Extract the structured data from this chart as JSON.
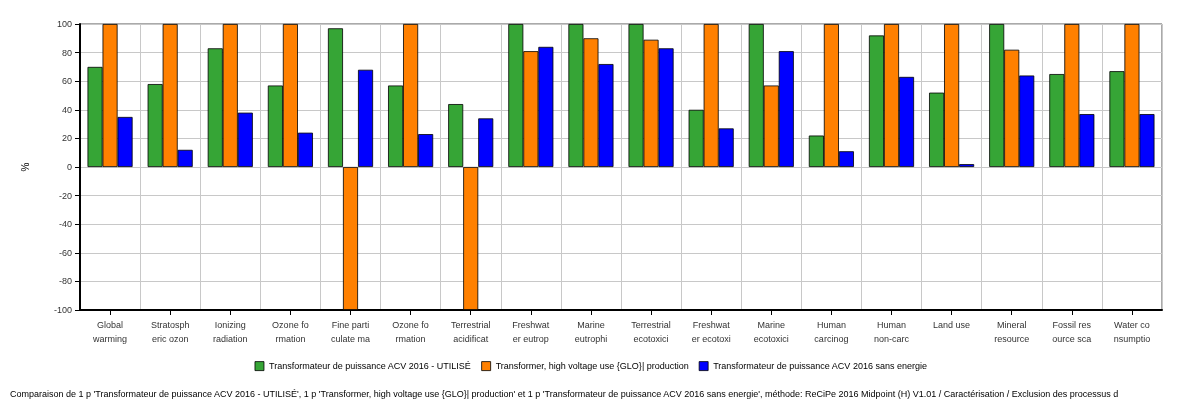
{
  "chart_data": {
    "type": "bar",
    "ylabel": "%",
    "categories": [
      "Global\nwarming",
      "Stratosph\neric ozon",
      "Ionizing\nradiation",
      "Ozone fo\nrmation",
      "Fine parti\nculate ma",
      "Ozone fo\nrmation",
      "Terrestrial\nacidificat",
      "Freshwat\ner eutrop",
      "Marine\neutrophi",
      "Terrestrial\necotoxici",
      "Freshwat\ner ecotoxi",
      "Marine\necotoxici",
      "Human\ncarcinog",
      "Human\nnon-carc",
      "Land use",
      "Mineral\nresource",
      "Fossil res\nource sca",
      "Water co\nnsumptio"
    ],
    "series": [
      {
        "name": "Transformateur de puissance ACV 2016 - UTILISÉ",
        "color": "#36a536",
        "values": [
          70,
          58,
          83,
          57,
          97,
          57,
          44,
          100,
          100,
          100,
          40,
          100,
          22,
          92,
          52,
          100,
          65,
          67
        ]
      },
      {
        "name": "Transformer, high voltage use {GLO}| production",
        "color": "#ff8000",
        "values": [
          100,
          100,
          100,
          100,
          -100,
          100,
          -100,
          81,
          90,
          89,
          100,
          57,
          100,
          100,
          100,
          82,
          100,
          100
        ]
      },
      {
        "name": "Transformateur de puissance ACV 2016 sans energie",
        "color": "#0000ff",
        "values": [
          35,
          12,
          38,
          24,
          68,
          23,
          34,
          84,
          72,
          83,
          27,
          81,
          11,
          63,
          2,
          64,
          37,
          37
        ]
      }
    ],
    "ylim": [
      -100,
      100
    ],
    "yticks": [
      -100,
      -80,
      -60,
      -40,
      -20,
      0,
      20,
      40,
      60,
      80,
      100
    ],
    "grid": true,
    "legend": "bottom",
    "annotations": [
      "Comparaison de 1 p 'Transformateur de puissance ACV 2016 - UTILISÉ', 1 p 'Transformer, high voltage use {GLO}| production' et 1 p 'Transformateur de puissance ACV 2016 sans energie', méthode: ReCiPe 2016 Midpoint (H) V1.01 / Caractérisation / Exclusion des processus d"
    ]
  }
}
